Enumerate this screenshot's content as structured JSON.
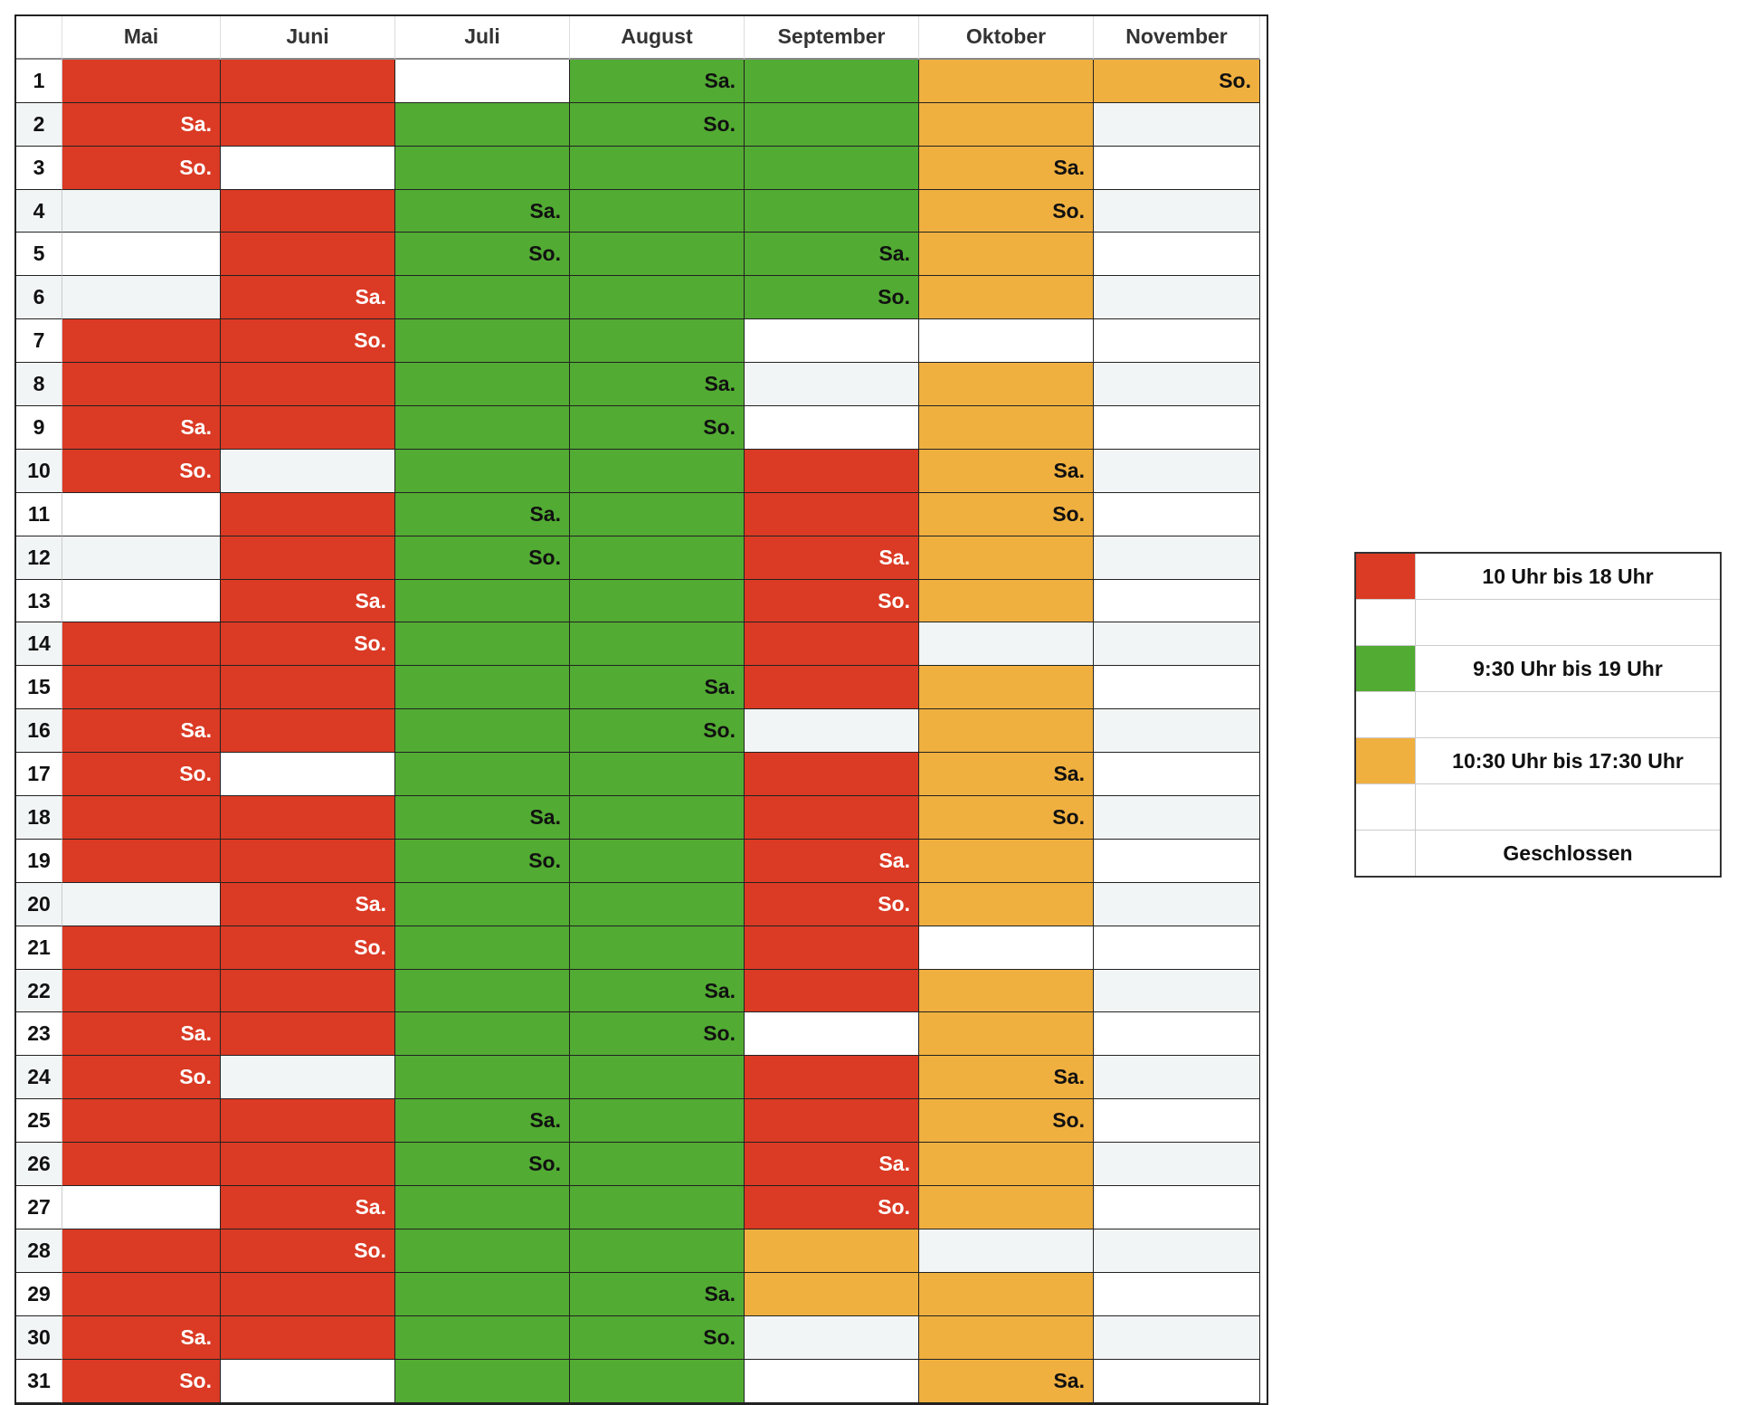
{
  "colors": {
    "R": "#db3a24",
    "G": "#52ab33",
    "O": "#f0b03f"
  },
  "months": [
    "Mai",
    "Juni",
    "Juli",
    "August",
    "September",
    "Oktober",
    "November"
  ],
  "days": [
    "1",
    "2",
    "3",
    "4",
    "5",
    "6",
    "7",
    "8",
    "9",
    "10",
    "11",
    "12",
    "13",
    "14",
    "15",
    "16",
    "17",
    "18",
    "19",
    "20",
    "21",
    "22",
    "23",
    "24",
    "25",
    "26",
    "27",
    "28",
    "29",
    "30",
    "31"
  ],
  "cells": {
    "Mai": [
      "R",
      "R:Sa.",
      "R:So.",
      "W",
      "W",
      "W",
      "R",
      "R",
      "R:Sa.",
      "R:So.",
      "W",
      "W",
      "W",
      "R",
      "R",
      "R:Sa.",
      "R:So.",
      "R",
      "R",
      "W",
      "R",
      "R",
      "R:Sa.",
      "R:So.",
      "R",
      "R",
      "W",
      "R",
      "R",
      "R:Sa.",
      "R:So."
    ],
    "Juni": [
      "R",
      "R",
      "W",
      "R",
      "R",
      "R:Sa.",
      "R:So.",
      "R",
      "R",
      "W",
      "R",
      "R",
      "R:Sa.",
      "R:So.",
      "R",
      "R",
      "W",
      "R",
      "R",
      "R:Sa.",
      "R:So.",
      "R",
      "R",
      "W",
      "R",
      "R",
      "R:Sa.",
      "R:So.",
      "R",
      "R",
      "W"
    ],
    "Juli": [
      "W",
      "G",
      "G",
      "G:Sa.",
      "G:So.",
      "G",
      "G",
      "G",
      "G",
      "G",
      "G:Sa.",
      "G:So.",
      "G",
      "G",
      "G",
      "G",
      "G",
      "G:Sa.",
      "G:So.",
      "G",
      "G",
      "G",
      "G",
      "G",
      "G:Sa.",
      "G:So.",
      "G",
      "G",
      "G",
      "G",
      "G"
    ],
    "August": [
      "G:Sa.",
      "G:So.",
      "G",
      "G",
      "G",
      "G",
      "G",
      "G:Sa.",
      "G:So.",
      "G",
      "G",
      "G",
      "G",
      "G",
      "G:Sa.",
      "G:So.",
      "G",
      "G",
      "G",
      "G",
      "G",
      "G:Sa.",
      "G:So.",
      "G",
      "G",
      "G",
      "G",
      "G",
      "G:Sa.",
      "G:So.",
      "G"
    ],
    "September": [
      "G",
      "G",
      "G",
      "G",
      "G:Sa.",
      "G:So.",
      "W",
      "W",
      "W",
      "R",
      "R",
      "R:Sa.",
      "R:So.",
      "R",
      "R",
      "W",
      "R",
      "R",
      "R:Sa.",
      "R:So.",
      "R",
      "R",
      "W",
      "R",
      "R",
      "R:Sa.",
      "R:So.",
      "O",
      "O",
      "W",
      "W"
    ],
    "Oktober": [
      "O",
      "O",
      "O:Sa.",
      "O:So.",
      "O",
      "O",
      "W",
      "O",
      "O",
      "O:Sa.",
      "O:So.",
      "O",
      "O",
      "W",
      "O",
      "O",
      "O:Sa.",
      "O:So.",
      "O",
      "O",
      "W",
      "O",
      "O",
      "O:Sa.",
      "O:So.",
      "O",
      "O",
      "W",
      "O",
      "O",
      "O:Sa."
    ],
    "November": [
      "O:So.",
      "W",
      "W",
      "W",
      "W",
      "W",
      "W",
      "W",
      "W",
      "W",
      "W",
      "W",
      "W",
      "W",
      "W",
      "W",
      "W",
      "W",
      "W",
      "W",
      "W",
      "W",
      "W",
      "W",
      "W",
      "W",
      "W",
      "W",
      "W",
      "W",
      "W"
    ]
  },
  "legend": [
    {
      "color": "R",
      "label": "10 Uhr bis 18 Uhr"
    },
    {
      "color": "W",
      "label": ""
    },
    {
      "color": "G",
      "label": "9:30 Uhr bis 19 Uhr"
    },
    {
      "color": "W",
      "label": ""
    },
    {
      "color": "O",
      "label": "10:30 Uhr bis 17:30 Uhr"
    },
    {
      "color": "W",
      "label": ""
    },
    {
      "color": "W",
      "label": "Geschlossen"
    }
  ]
}
